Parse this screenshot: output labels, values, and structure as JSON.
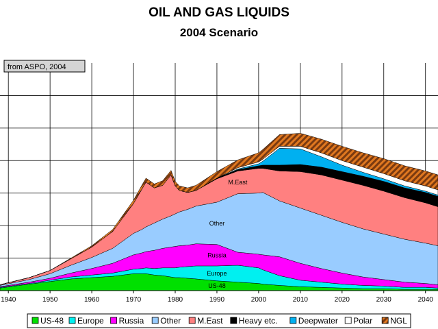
{
  "chart_data": {
    "type": "area",
    "stacked": true,
    "title": "OIL AND GAS LIQUIDS",
    "subtitle": "2004 Scenario",
    "source_note": "from ASPO, 2004",
    "xlabel": "",
    "ylabel": "",
    "xlim": [
      1938,
      2043
    ],
    "ylim": [
      0,
      35
    ],
    "grid": true,
    "x_ticks": [
      1940,
      1950,
      1960,
      1970,
      1980,
      1990,
      2000,
      2010,
      2020,
      2030,
      2040
    ],
    "x": [
      1938,
      1945,
      1950,
      1955,
      1960,
      1965,
      1970,
      1972,
      1973,
      1975,
      1977,
      1979,
      1980,
      1981,
      1983,
      1985,
      1990,
      1995,
      2000,
      2001,
      2005,
      2010,
      2015,
      2020,
      2025,
      2030,
      2035,
      2040,
      2043
    ],
    "series": [
      {
        "name": "US-48",
        "color": "#00e000",
        "values": [
          0.4,
          1.0,
          1.4,
          1.8,
          2.0,
          2.2,
          2.6,
          2.6,
          2.6,
          2.4,
          2.3,
          2.1,
          2.0,
          2.0,
          1.9,
          1.8,
          1.5,
          1.3,
          1.1,
          1.0,
          0.8,
          0.6,
          0.5,
          0.4,
          0.3,
          0.3,
          0.2,
          0.2,
          0.2
        ]
      },
      {
        "name": "Europe",
        "color": "#00f0f0",
        "values": [
          0.1,
          0.1,
          0.2,
          0.3,
          0.4,
          0.5,
          0.7,
          0.8,
          0.9,
          1.0,
          1.2,
          1.4,
          1.5,
          1.6,
          1.8,
          2.0,
          2.3,
          2.6,
          2.4,
          2.2,
          1.5,
          1.0,
          0.8,
          0.6,
          0.5,
          0.4,
          0.3,
          0.3,
          0.2
        ]
      },
      {
        "name": "Russia",
        "color": "#ff00ff",
        "values": [
          0.1,
          0.2,
          0.3,
          0.6,
          1.0,
          1.5,
          2.2,
          2.4,
          2.5,
          2.8,
          3.0,
          3.2,
          3.3,
          3.3,
          3.3,
          3.4,
          3.3,
          2.0,
          2.1,
          2.3,
          2.9,
          2.6,
          2.1,
          1.7,
          1.3,
          1.0,
          0.8,
          0.6,
          0.5
        ]
      },
      {
        "name": "Other",
        "color": "#99ccff",
        "values": [
          0.2,
          0.4,
          0.7,
          1.2,
          1.7,
          2.3,
          3.3,
          3.6,
          3.8,
          4.2,
          4.5,
          4.8,
          5.0,
          5.2,
          5.5,
          5.8,
          6.5,
          9.0,
          9.4,
          9.6,
          8.6,
          8.5,
          8.2,
          7.8,
          7.4,
          7.0,
          6.6,
          6.2,
          6.0
        ]
      },
      {
        "name": "M.East",
        "color": "#ff8080",
        "values": [
          0.1,
          0.3,
          0.5,
          1.0,
          1.6,
          2.6,
          4.6,
          6.2,
          6.9,
          5.4,
          5.2,
          6.3,
          4.3,
          3.3,
          2.6,
          2.4,
          3.6,
          3.5,
          3.8,
          3.7,
          4.6,
          5.6,
          6.2,
          6.5,
          6.7,
          6.6,
          6.4,
          6.2,
          6.0
        ]
      },
      {
        "name": "Heavy etc.",
        "color": "#000000",
        "values": [
          0.0,
          0.0,
          0.0,
          0.0,
          0.0,
          0.0,
          0.0,
          0.0,
          0.0,
          0.0,
          0.0,
          0.0,
          0.0,
          0.0,
          0.0,
          0.0,
          0.1,
          0.2,
          0.4,
          0.5,
          0.9,
          1.1,
          1.2,
          1.3,
          1.4,
          1.5,
          1.5,
          1.6,
          1.6
        ]
      },
      {
        "name": "Deepwater",
        "color": "#00b0f0",
        "values": [
          0.0,
          0.0,
          0.0,
          0.0,
          0.0,
          0.0,
          0.0,
          0.0,
          0.0,
          0.0,
          0.0,
          0.0,
          0.0,
          0.0,
          0.0,
          0.0,
          0.0,
          0.1,
          0.3,
          0.6,
          2.6,
          2.4,
          1.6,
          1.0,
          0.6,
          0.4,
          0.3,
          0.2,
          0.2
        ]
      },
      {
        "name": "Polar",
        "color": "#ffffff",
        "values": [
          0.0,
          0.0,
          0.0,
          0.0,
          0.0,
          0.0,
          0.0,
          0.0,
          0.0,
          0.0,
          0.0,
          0.0,
          0.0,
          0.0,
          0.0,
          0.0,
          0.0,
          0.2,
          0.3,
          0.3,
          0.3,
          0.4,
          0.6,
          0.7,
          0.8,
          0.8,
          0.8,
          0.8,
          0.8
        ]
      },
      {
        "name": "NGL",
        "color": "#e07820",
        "values": [
          0.0,
          0.0,
          0.0,
          0.1,
          0.2,
          0.3,
          0.5,
          0.6,
          0.6,
          0.6,
          0.7,
          0.7,
          0.7,
          0.7,
          0.7,
          0.8,
          1.0,
          1.2,
          1.4,
          1.5,
          1.8,
          2.0,
          2.1,
          2.2,
          2.2,
          2.3,
          2.3,
          2.3,
          2.3
        ]
      }
    ],
    "area_labels": [
      {
        "text": "M.East",
        "series": "M.East",
        "x": 1995
      },
      {
        "text": "Other",
        "series": "Other",
        "x": 1990
      },
      {
        "text": "Russia",
        "series": "Russia",
        "x": 1990
      },
      {
        "text": "Europe",
        "series": "Europe",
        "x": 1990
      },
      {
        "text": "US-48",
        "series": "US-48",
        "x": 1990
      }
    ],
    "legend": [
      "US-48",
      "Europe",
      "Russia",
      "Other",
      "M.East",
      "Heavy etc.",
      "Deepwater",
      "Polar",
      "NGL"
    ],
    "legend_position": "bottom"
  }
}
